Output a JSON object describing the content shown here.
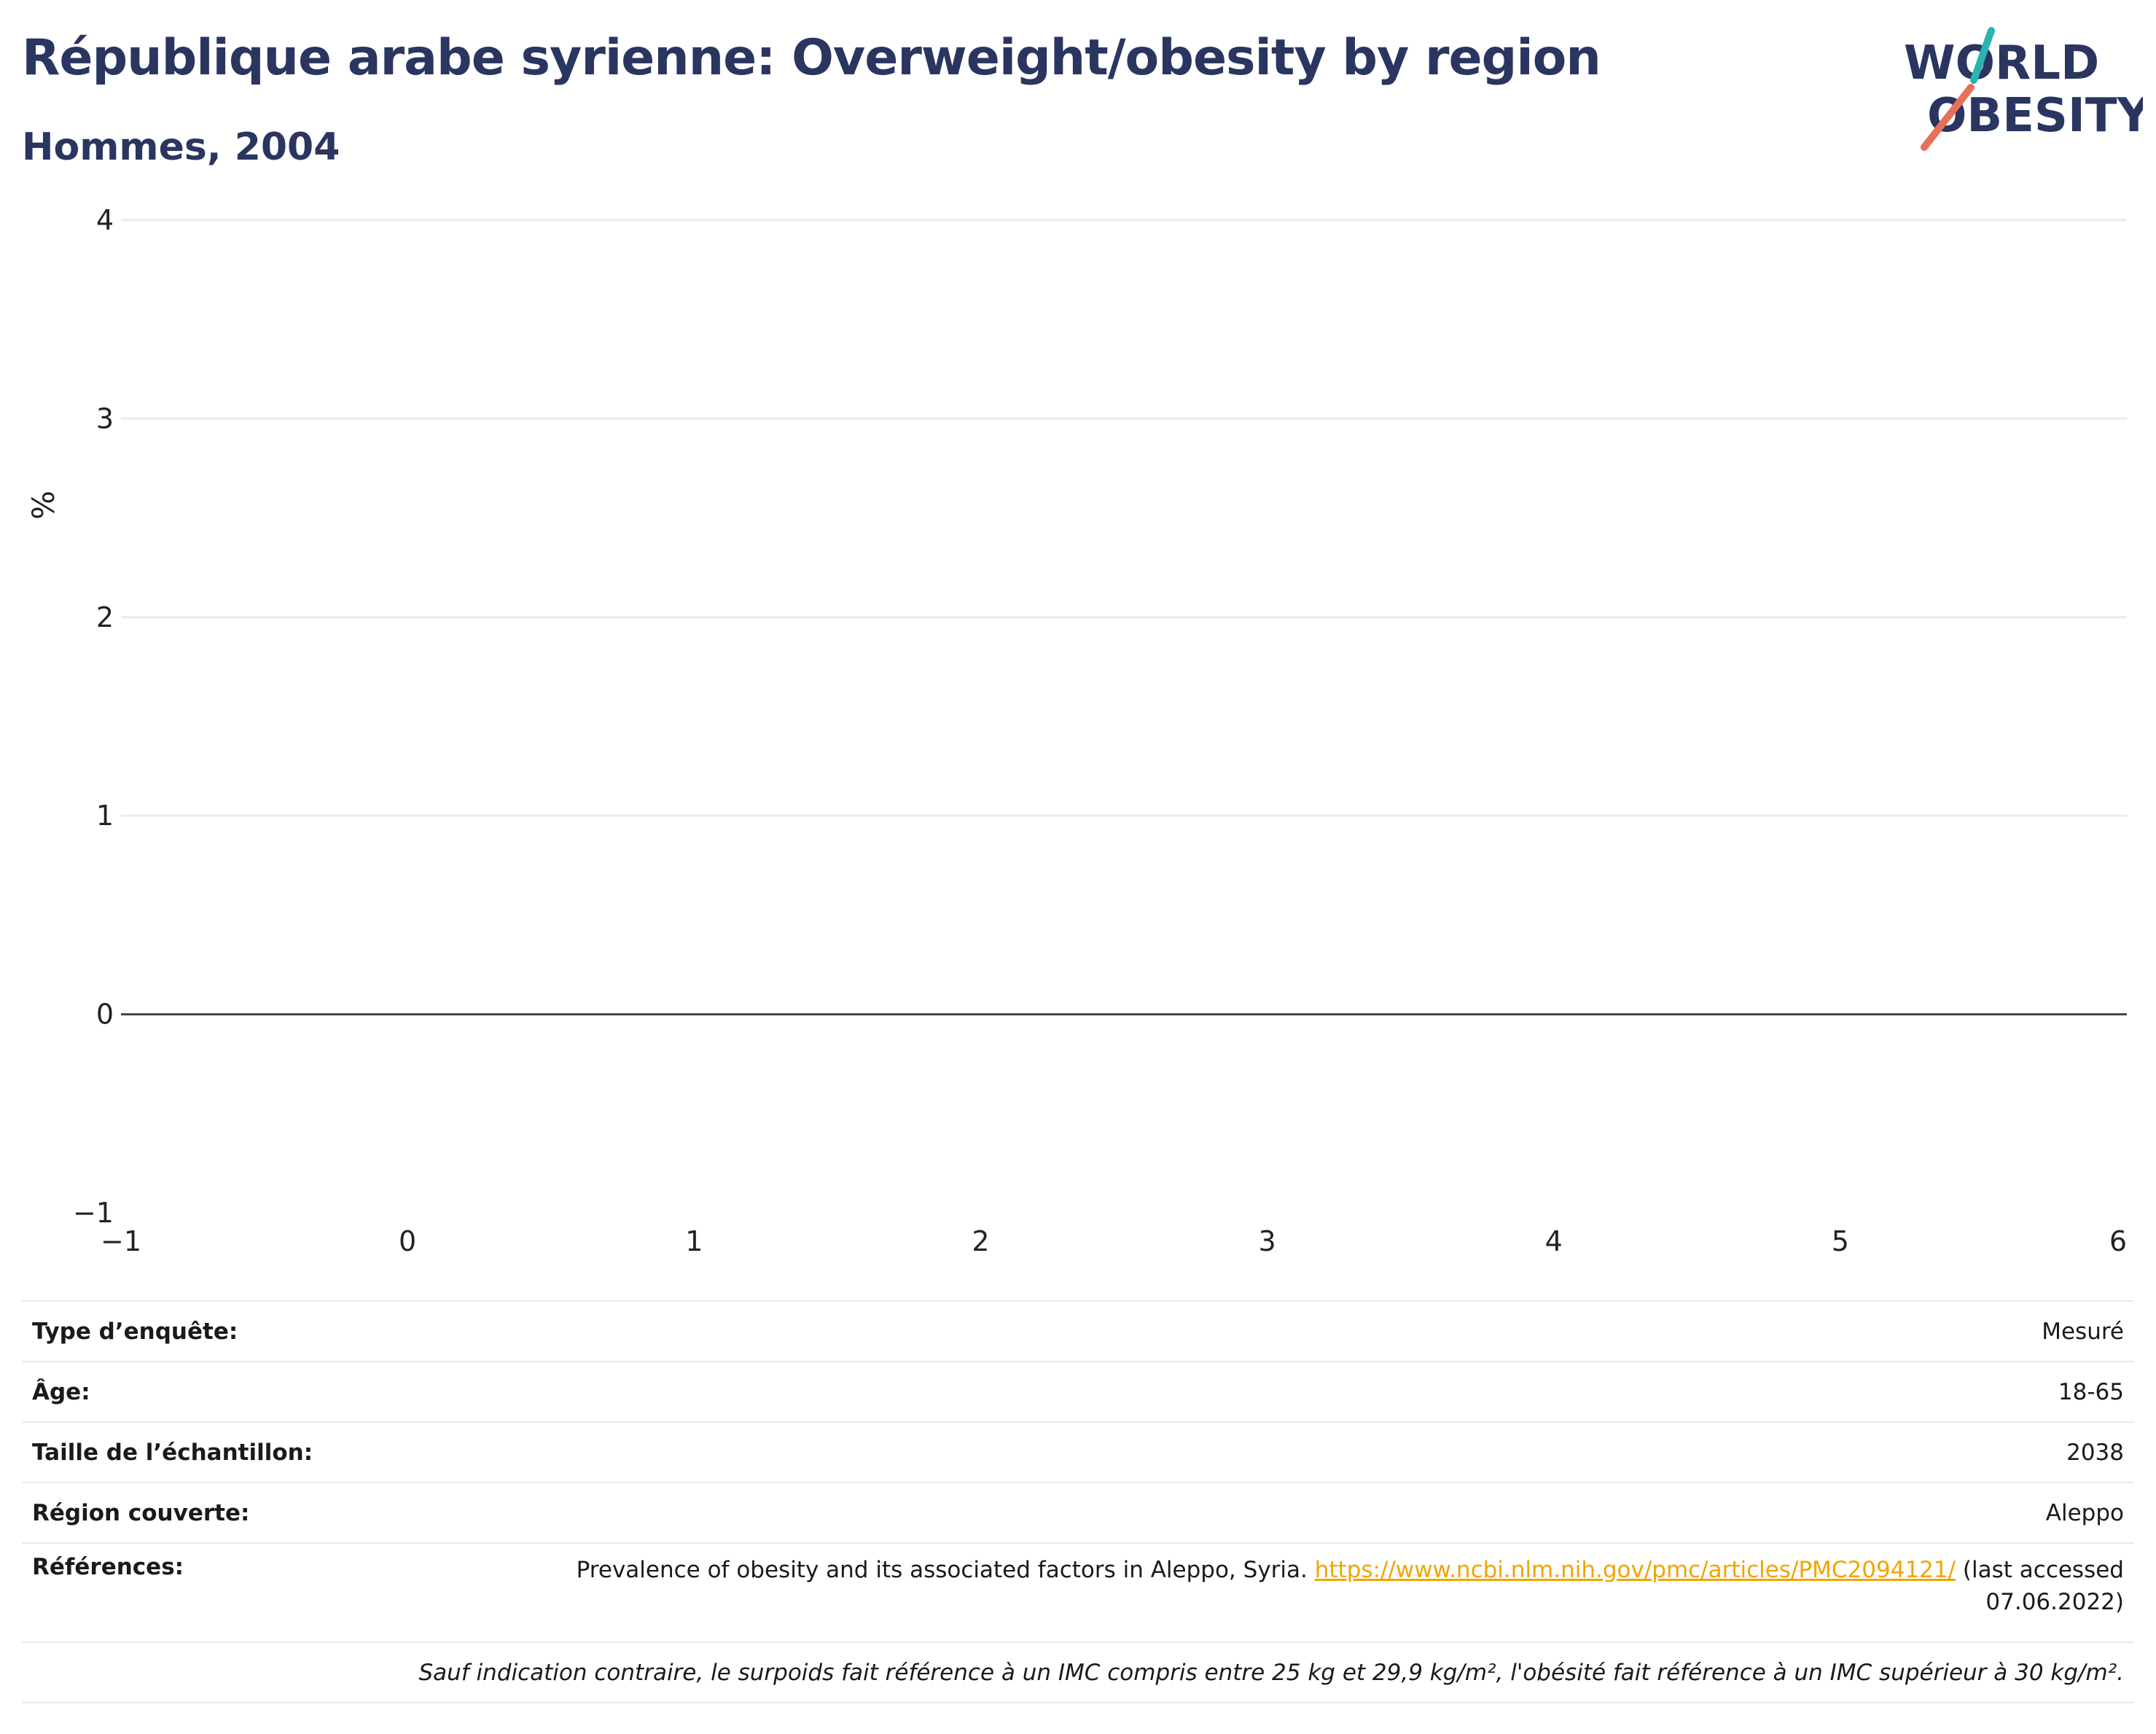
{
  "header": {
    "title": "République arabe syrienne: Overweight/obesity by region",
    "subtitle": "Hommes, 2004"
  },
  "logo": {
    "line1": "WORLD",
    "line2": "OBESITY",
    "colors": {
      "text": "#2a3560",
      "accent_teal": "#2bb3b1",
      "accent_red": "#e8705a"
    }
  },
  "chart_data": {
    "type": "bar",
    "title": "République arabe syrienne: Overweight/obesity by region",
    "subtitle": "Hommes, 2004",
    "categories": [],
    "series": [],
    "xlabel": "",
    "ylabel": "%",
    "xlim": [
      -1,
      6
    ],
    "ylim": [
      -1,
      4
    ],
    "x_ticks": [
      -1,
      0,
      1,
      2,
      3,
      4,
      5,
      6
    ],
    "y_ticks": [
      -1,
      0,
      1,
      2,
      3,
      4
    ],
    "x_tick_labels": [
      "−1",
      "0",
      "1",
      "2",
      "3",
      "4",
      "5",
      "6"
    ],
    "y_tick_labels": [
      "−1",
      "0",
      "1",
      "2",
      "3",
      "4"
    ],
    "grid": true,
    "zero_line": true
  },
  "info": {
    "rows": [
      {
        "label": "Type d’enquête:",
        "value": "Mesuré"
      },
      {
        "label": "Âge:",
        "value": "18-65"
      },
      {
        "label": "Taille de l’échantillon:",
        "value": "2038"
      },
      {
        "label": "Région couverte:",
        "value": "Aleppo"
      }
    ],
    "references": {
      "label": "Références:",
      "text_before": "Prevalence of obesity and its associated factors in Aleppo, Syria. ",
      "link": "https://www.ncbi.nlm.nih.gov/pmc/articles/PMC2094121/",
      "text_after": " (last accessed 07.06.2022)"
    },
    "note": "Sauf indication contraire, le surpoids fait référence à un IMC compris entre 25 kg et 29,9 kg/m², l'obésité fait référence à un IMC supérieur à 30 kg/m²."
  }
}
